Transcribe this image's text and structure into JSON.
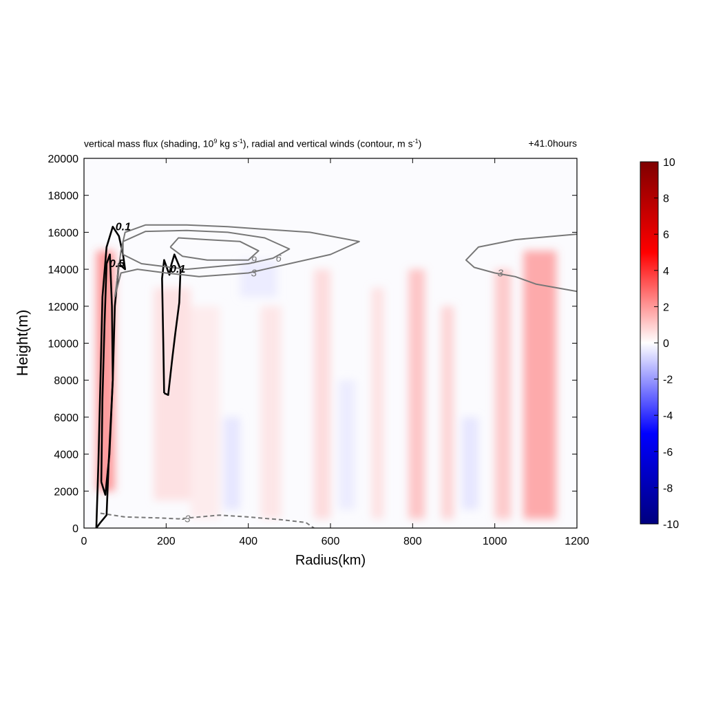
{
  "chart_data": {
    "type": "heatmap",
    "title_parts": {
      "a": "vertical mass flux (shading, 10",
      "a_sup": "9",
      "b": " kg s",
      "b_sup": "-1",
      "c": "), radial and vertical winds (contour, m s",
      "c_sup": "-1",
      "d": ")"
    },
    "time_label": "+41.0hours",
    "xlabel": "Radius(km)",
    "ylabel": "Height(m)",
    "xlim": [
      0,
      1200
    ],
    "ylim": [
      0,
      20000
    ],
    "xticks": [
      0,
      200,
      400,
      600,
      800,
      1000,
      1200
    ],
    "yticks": [
      0,
      2000,
      4000,
      6000,
      8000,
      10000,
      12000,
      14000,
      16000,
      18000,
      20000
    ],
    "colorbar": {
      "range": [
        -10,
        10
      ],
      "ticks": [
        10,
        8,
        6,
        4,
        2,
        0,
        -2,
        -4,
        -6,
        -8,
        -10
      ],
      "colors": [
        "#00007f",
        "#0000ff",
        "#ffffff",
        "#ff0000",
        "#7f0000"
      ]
    },
    "shading_bands": [
      {
        "x0": 30,
        "x1": 75,
        "y0": 2000,
        "y1": 15000,
        "value": 3.5
      },
      {
        "x0": 170,
        "x1": 260,
        "y0": 1500,
        "y1": 13000,
        "value": 1.0
      },
      {
        "x0": 260,
        "x1": 330,
        "y0": 500,
        "y1": 12000,
        "value": 0.6
      },
      {
        "x0": 430,
        "x1": 480,
        "y0": 500,
        "y1": 12000,
        "value": 0.8
      },
      {
        "x0": 560,
        "x1": 600,
        "y0": 500,
        "y1": 14000,
        "value": 1.2
      },
      {
        "x0": 700,
        "x1": 730,
        "y0": 500,
        "y1": 13000,
        "value": 1.0
      },
      {
        "x0": 790,
        "x1": 830,
        "y0": 500,
        "y1": 14000,
        "value": 2.0
      },
      {
        "x0": 870,
        "x1": 900,
        "y0": 500,
        "y1": 12000,
        "value": 1.5
      },
      {
        "x0": 1000,
        "x1": 1040,
        "y0": 500,
        "y1": 14000,
        "value": 1.8
      },
      {
        "x0": 1070,
        "x1": 1150,
        "y0": 500,
        "y1": 15000,
        "value": 3.0
      },
      {
        "x0": 340,
        "x1": 380,
        "y0": 1000,
        "y1": 6000,
        "value": -0.8
      },
      {
        "x0": 620,
        "x1": 660,
        "y0": 1000,
        "y1": 8000,
        "value": -0.6
      },
      {
        "x0": 920,
        "x1": 960,
        "y0": 1000,
        "y1": 6000,
        "value": -0.8
      },
      {
        "x0": 380,
        "x1": 470,
        "y0": 12500,
        "y1": 14500,
        "value": -0.6
      }
    ],
    "contours": [
      {
        "label": "0.1",
        "field": "vertical",
        "points": [
          [
            30,
            0
          ],
          [
            35,
            3500
          ],
          [
            40,
            8000
          ],
          [
            45,
            12500
          ],
          [
            55,
            15200
          ],
          [
            70,
            16300
          ],
          [
            85,
            15800
          ],
          [
            95,
            14800
          ],
          [
            100,
            14000
          ],
          [
            85,
            14300
          ],
          [
            75,
            12000
          ],
          [
            70,
            8000
          ],
          [
            60,
            3500
          ],
          [
            55,
            700
          ],
          [
            40,
            300
          ],
          [
            30,
            0
          ]
        ]
      },
      {
        "label": "0.5",
        "field": "vertical",
        "points": [
          [
            42,
            2500
          ],
          [
            45,
            7000
          ],
          [
            50,
            11000
          ],
          [
            55,
            14300
          ],
          [
            63,
            14800
          ],
          [
            68,
            12000
          ],
          [
            70,
            8000
          ],
          [
            62,
            4000
          ],
          [
            52,
            1800
          ],
          [
            42,
            2500
          ]
        ]
      },
      {
        "label": "0.1",
        "field": "vertical",
        "points": [
          [
            195,
            7300
          ],
          [
            193,
            10000
          ],
          [
            190,
            13500
          ],
          [
            195,
            14500
          ],
          [
            203,
            14000
          ],
          [
            208,
            13700
          ],
          [
            212,
            14200
          ],
          [
            220,
            14800
          ],
          [
            235,
            14000
          ],
          [
            232,
            12200
          ],
          [
            222,
            10500
          ],
          [
            215,
            9200
          ],
          [
            205,
            7200
          ],
          [
            195,
            7300
          ]
        ]
      },
      {
        "label": "3",
        "field": "radial",
        "points": [
          [
            75,
            12500
          ],
          [
            90,
            13800
          ],
          [
            130,
            14000
          ],
          [
            200,
            13800
          ],
          [
            280,
            13600
          ],
          [
            400,
            13800
          ],
          [
            500,
            14300
          ],
          [
            600,
            14800
          ],
          [
            670,
            15500
          ],
          [
            550,
            16000
          ],
          [
            450,
            16150
          ],
          [
            350,
            16300
          ],
          [
            250,
            16400
          ],
          [
            150,
            16400
          ],
          [
            100,
            16000
          ],
          [
            90,
            15000
          ],
          [
            75,
            12500
          ]
        ]
      },
      {
        "label": "6",
        "field": "radial",
        "points": [
          [
            95,
            14800
          ],
          [
            140,
            14300
          ],
          [
            250,
            14000
          ],
          [
            400,
            14300
          ],
          [
            460,
            14600
          ],
          [
            500,
            15100
          ],
          [
            440,
            15700
          ],
          [
            350,
            16000
          ],
          [
            250,
            16100
          ],
          [
            150,
            16050
          ],
          [
            95,
            15500
          ],
          [
            95,
            14800
          ]
        ]
      },
      {
        "label": "9",
        "field": "radial",
        "points": [
          [
            210,
            15200
          ],
          [
            240,
            14700
          ],
          [
            300,
            14500
          ],
          [
            400,
            14500
          ],
          [
            425,
            15000
          ],
          [
            380,
            15500
          ],
          [
            300,
            15600
          ],
          [
            230,
            15700
          ],
          [
            210,
            15200
          ]
        ]
      },
      {
        "label": "3",
        "field": "radial",
        "points": [
          [
            1200,
            12800
          ],
          [
            1100,
            13200
          ],
          [
            1050,
            13600
          ],
          [
            1000,
            13800
          ],
          [
            950,
            14100
          ],
          [
            930,
            14500
          ],
          [
            960,
            15200
          ],
          [
            1050,
            15600
          ],
          [
            1150,
            15800
          ],
          [
            1200,
            15900
          ]
        ]
      },
      {
        "label": "-3",
        "field": "radial",
        "points": [
          [
            40,
            800
          ],
          [
            100,
            600
          ],
          [
            180,
            550
          ],
          [
            230,
            500
          ],
          [
            280,
            600
          ],
          [
            330,
            700
          ],
          [
            400,
            600
          ],
          [
            480,
            450
          ],
          [
            540,
            300
          ],
          [
            560,
            0
          ]
        ]
      }
    ]
  }
}
